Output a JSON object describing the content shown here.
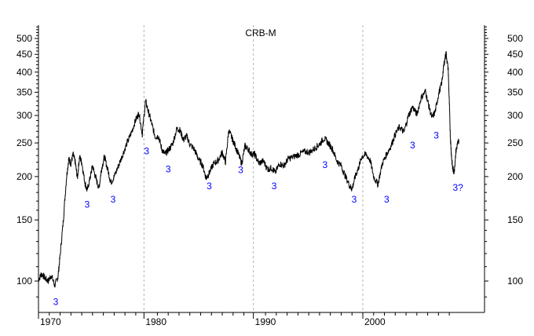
{
  "chart_data": {
    "type": "line",
    "title": "CRB-M",
    "xlabel": "",
    "ylabel": "",
    "y_scale": "log",
    "xlim": [
      1969.9,
      2009.0
    ],
    "ylim": [
      80,
      550
    ],
    "grid": "vertical dashed at decades",
    "x_ticks": [
      {
        "value": 1970,
        "label": "1970"
      },
      {
        "value": 1980,
        "label": "1980"
      },
      {
        "value": 1990,
        "label": "1990"
      },
      {
        "value": 2000,
        "label": "2000"
      }
    ],
    "y_ticks": [
      {
        "value": 500,
        "label": "500"
      },
      {
        "value": 450,
        "label": "450"
      },
      {
        "value": 400,
        "label": "400"
      },
      {
        "value": 350,
        "label": "350"
      },
      {
        "value": 300,
        "label": "300"
      },
      {
        "value": 250,
        "label": "250"
      },
      {
        "value": 200,
        "label": "200"
      },
      {
        "value": 150,
        "label": "150"
      },
      {
        "value": 100,
        "label": "100"
      }
    ],
    "series": [
      {
        "x": [
          1970.0,
          1970.3,
          1970.6,
          1970.9,
          1971.2,
          1971.5,
          1971.8,
          1972.0,
          1972.3,
          1972.6,
          1972.8,
          1973.0,
          1973.2,
          1973.4,
          1973.6,
          1973.8,
          1974.0,
          1974.3,
          1974.5,
          1974.8,
          1975.0,
          1975.3,
          1975.6,
          1975.8,
          1976.1,
          1976.4,
          1976.7,
          1977.0,
          1977.4,
          1977.8,
          1978.2,
          1978.6,
          1979.0,
          1979.3,
          1979.6,
          1979.9,
          1980.2,
          1980.5,
          1980.8,
          1981.1,
          1981.4,
          1981.7,
          1982.0,
          1982.4,
          1982.8,
          1983.1,
          1983.4,
          1983.7,
          1984.0,
          1984.4,
          1984.8,
          1985.2,
          1985.5,
          1985.8,
          1986.2,
          1986.6,
          1987.0,
          1987.3,
          1987.6,
          1987.9,
          1988.2,
          1988.5,
          1988.8,
          1989.1,
          1989.4,
          1989.7,
          1990.0,
          1990.4,
          1990.8,
          1991.2,
          1991.6,
          1991.9,
          1992.3,
          1992.7,
          1993.1,
          1993.6,
          1994.1,
          1994.6,
          1995.1,
          1995.6,
          1996.0,
          1996.4,
          1996.8,
          1997.2,
          1997.6,
          1998.0,
          1998.4,
          1998.8,
          1999.0,
          1999.3,
          1999.6,
          1999.9,
          2000.3,
          2000.7,
          2001.0,
          2001.4,
          2001.8,
          2002.2,
          2002.6,
          2003.0,
          2003.4,
          2003.8,
          2004.2,
          2004.6,
          2005.0,
          2005.4,
          2005.8,
          2006.1,
          2006.4,
          2006.7,
          2007.0,
          2007.3,
          2007.5,
          2007.7,
          2007.9,
          2008.0,
          2008.1,
          2008.2,
          2008.3,
          2008.45,
          2008.6,
          2008.75,
          2008.9
        ],
        "values": [
          101,
          105,
          102,
          100,
          104,
          97,
          103,
          118,
          150,
          200,
          225,
          218,
          232,
          220,
          198,
          228,
          220,
          192,
          182,
          200,
          215,
          198,
          185,
          208,
          228,
          210,
          192,
          200,
          215,
          232,
          250,
          268,
          292,
          305,
          265,
          330,
          305,
          282,
          260,
          262,
          240,
          232,
          238,
          248,
          275,
          272,
          255,
          262,
          248,
          240,
          225,
          215,
          198,
          205,
          218,
          222,
          235,
          220,
          272,
          258,
          245,
          232,
          218,
          245,
          240,
          232,
          232,
          218,
          222,
          210,
          212,
          205,
          218,
          215,
          225,
          228,
          232,
          236,
          235,
          242,
          248,
          258,
          250,
          240,
          222,
          215,
          200,
          188,
          184,
          200,
          212,
          228,
          232,
          222,
          200,
          190,
          218,
          232,
          245,
          265,
          278,
          268,
          298,
          318,
          302,
          338,
          352,
          320,
          295,
          308,
          345,
          372,
          420,
          455,
          405,
          330,
          260,
          230,
          212,
          206,
          235,
          248,
          255
        ]
      }
    ],
    "annotations": [
      {
        "text": "3",
        "x": 1971.6,
        "y": 87
      },
      {
        "text": "3",
        "x": 1980.0,
        "y": 237
      },
      {
        "text": "3",
        "x": 1974.5,
        "y": 166
      },
      {
        "text": "3",
        "x": 1976.9,
        "y": 172
      },
      {
        "text": "3",
        "x": 1982.0,
        "y": 210
      },
      {
        "text": "3",
        "x": 1985.8,
        "y": 188
      },
      {
        "text": "3",
        "x": 1988.7,
        "y": 209
      },
      {
        "text": "3",
        "x": 1991.8,
        "y": 188
      },
      {
        "text": "3",
        "x": 1996.5,
        "y": 216
      },
      {
        "text": "3",
        "x": 1999.2,
        "y": 172
      },
      {
        "text": "3",
        "x": 2002.2,
        "y": 172
      },
      {
        "text": "3",
        "x": 2004.6,
        "y": 246
      },
      {
        "text": "3",
        "x": 2006.8,
        "y": 263
      },
      {
        "text": "3?",
        "x": 2008.8,
        "y": 186
      }
    ],
    "colors": {
      "line": "#000000",
      "annotation": "#0000ff",
      "grid": "#b4b4b4",
      "axis": "#000000"
    }
  }
}
